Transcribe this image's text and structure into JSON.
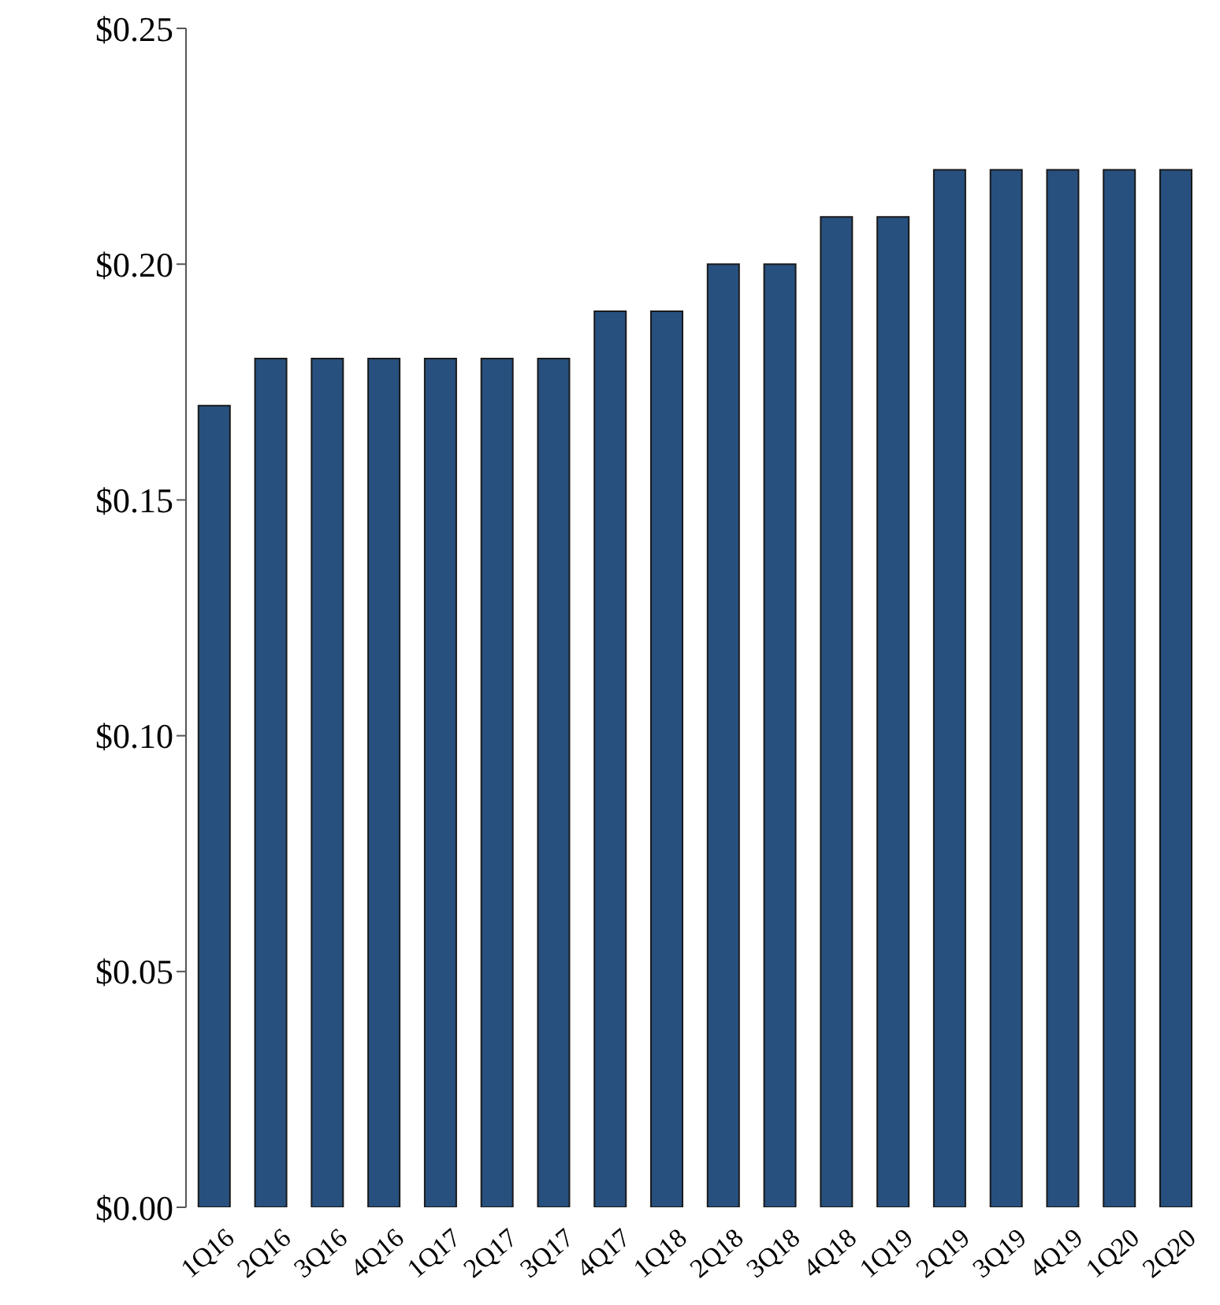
{
  "chart_data": {
    "type": "bar",
    "categories": [
      "1Q16",
      "2Q16",
      "3Q16",
      "4Q16",
      "1Q17",
      "2Q17",
      "3Q17",
      "4Q17",
      "1Q18",
      "2Q18",
      "3Q18",
      "4Q18",
      "1Q19",
      "2Q19",
      "3Q19",
      "4Q19",
      "1Q20",
      "2Q20"
    ],
    "values": [
      0.17,
      0.18,
      0.18,
      0.18,
      0.18,
      0.18,
      0.18,
      0.19,
      0.19,
      0.2,
      0.2,
      0.21,
      0.21,
      0.22,
      0.22,
      0.22,
      0.22,
      0.22
    ],
    "color": "#27507f",
    "ylim": [
      0,
      0.25
    ],
    "yticks": [
      {
        "value": 0,
        "label": "$0.00"
      },
      {
        "value": 0.05,
        "label": "$0.05"
      },
      {
        "value": 0.1,
        "label": "$0.10"
      },
      {
        "value": 0.15,
        "label": "$0.15"
      },
      {
        "value": 0.2,
        "label": "$0.20"
      },
      {
        "value": 0.25,
        "label": "$0.25"
      }
    ],
    "grid": false,
    "legend": false
  }
}
